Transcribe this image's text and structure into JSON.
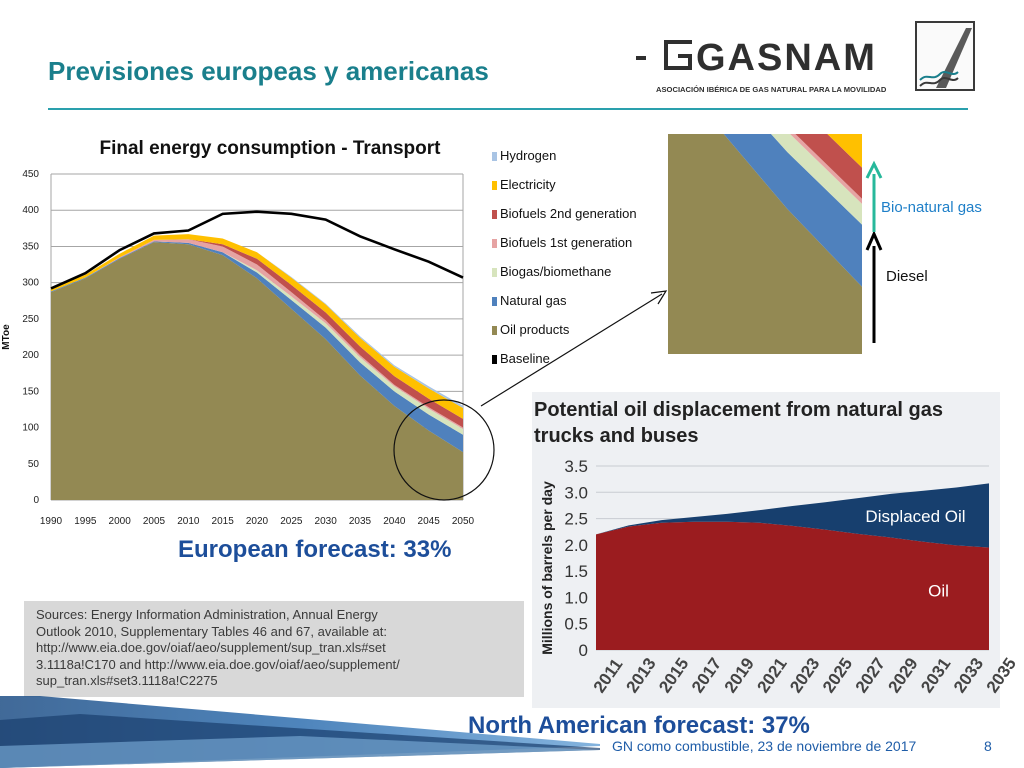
{
  "slide": {
    "title": "Previsiones europeas y americanas",
    "footer": "GN como combustible, 23 de noviembre de 2017",
    "page_number": "8",
    "accent_color": "#1a7f8c"
  },
  "logo": {
    "name": "GASNAM",
    "subtitle": "ASOCIACIÓN IBÉRICA DE GAS NATURAL PARA LA MOVILIDAD"
  },
  "europe": {
    "forecast": "European forecast: 33%",
    "inset_labels": {
      "bio": "Bio-natural gas",
      "diesel": "Diesel"
    },
    "inset_label_colors": {
      "bio": "#1e7fc8",
      "diesel": "#111111"
    }
  },
  "north_america": {
    "forecast": "North American forecast: 37%",
    "sources": [
      "Sources: Energy Information Administration, Annual Energy",
      "Outlook 2010, Supplementary Tables 46 and 67, available at:",
      "http://www.eia.doe.gov/oiaf/aeo/supplement/sup_tran.xls#set",
      "3.1118a!C170 and http://www.eia.doe.gov/oiaf/aeo/supplement/",
      "sup_tran.xls#set3.1118a!C2275"
    ]
  },
  "chart_data": [
    {
      "type": "area",
      "title": "Final energy consumption - Transport",
      "ylabel": "MToe",
      "xlabel": "",
      "ylim": [
        0,
        450
      ],
      "yticks": [
        0,
        50,
        100,
        150,
        200,
        250,
        300,
        350,
        400,
        450
      ],
      "x": [
        1990,
        1995,
        2000,
        2005,
        2010,
        2015,
        2020,
        2025,
        2030,
        2035,
        2040,
        2045,
        2050
      ],
      "grid": true,
      "legend": "right",
      "series": [
        {
          "name": "Hydrogen",
          "color": "#a9c4e4",
          "values": [
            0,
            0,
            0,
            0,
            0,
            0,
            0,
            1,
            1,
            2,
            2,
            3,
            3
          ]
        },
        {
          "name": "Electricity",
          "color": "#ffc000",
          "values": [
            4,
            4,
            5,
            6,
            7,
            8,
            9,
            10,
            11,
            12,
            13,
            14,
            15
          ]
        },
        {
          "name": "Biofuels 2nd generation",
          "color": "#c0504d",
          "values": [
            0,
            0,
            0,
            0,
            0,
            3,
            8,
            10,
            11,
            12,
            12,
            12,
            12
          ]
        },
        {
          "name": "Biofuels 1st generation",
          "color": "#e6a3a3",
          "values": [
            0,
            0,
            1,
            2,
            5,
            8,
            8,
            6,
            4,
            3,
            2,
            2,
            2
          ]
        },
        {
          "name": "Biogas/biomethane",
          "color": "#d7e4bd",
          "values": [
            0,
            0,
            0,
            0,
            0,
            0,
            3,
            5,
            6,
            7,
            7,
            8,
            8
          ]
        },
        {
          "name": "Natural gas",
          "color": "#4f81bd",
          "values": [
            1,
            1,
            1,
            1,
            2,
            4,
            8,
            12,
            16,
            18,
            20,
            22,
            24
          ]
        },
        {
          "name": "Oil products",
          "color": "#938953",
          "values": [
            287,
            306,
            333,
            356,
            353,
            338,
            306,
            264,
            222,
            172,
            130,
            96,
            66
          ]
        }
      ],
      "baseline": {
        "name": "Baseline",
        "color": "#000000",
        "values": [
          292,
          313,
          345,
          368,
          372,
          395,
          398,
          395,
          387,
          364,
          346,
          329,
          307
        ]
      }
    },
    {
      "type": "area",
      "title": "Potential oil displacement from natural gas trucks and buses",
      "ylabel": "Millions of barrels per day",
      "xlabel": "",
      "ylim": [
        0,
        3.5
      ],
      "yticks": [
        0,
        0.5,
        1.0,
        1.5,
        2.0,
        2.5,
        3.0,
        3.5
      ],
      "categories": [
        "2011",
        "2013",
        "2015",
        "2017",
        "2019",
        "2021",
        "2023",
        "2025",
        "2027",
        "2029",
        "2031",
        "2033",
        "2035"
      ],
      "series": [
        {
          "name": "Oil",
          "color": "#9b1c1f",
          "values": [
            2.2,
            2.35,
            2.42,
            2.44,
            2.44,
            2.42,
            2.36,
            2.29,
            2.21,
            2.14,
            2.06,
            1.99,
            1.95
          ]
        },
        {
          "name": "Displaced Oil",
          "color": "#173f6e",
          "values": [
            0.0,
            0.02,
            0.05,
            0.09,
            0.15,
            0.24,
            0.38,
            0.52,
            0.68,
            0.83,
            0.97,
            1.1,
            1.22
          ]
        }
      ],
      "tick_format": [
        "0",
        "0.5",
        "1.0",
        "1.5",
        "2.0",
        "2.5",
        "3.0",
        "3.5"
      ],
      "grid": true
    }
  ]
}
